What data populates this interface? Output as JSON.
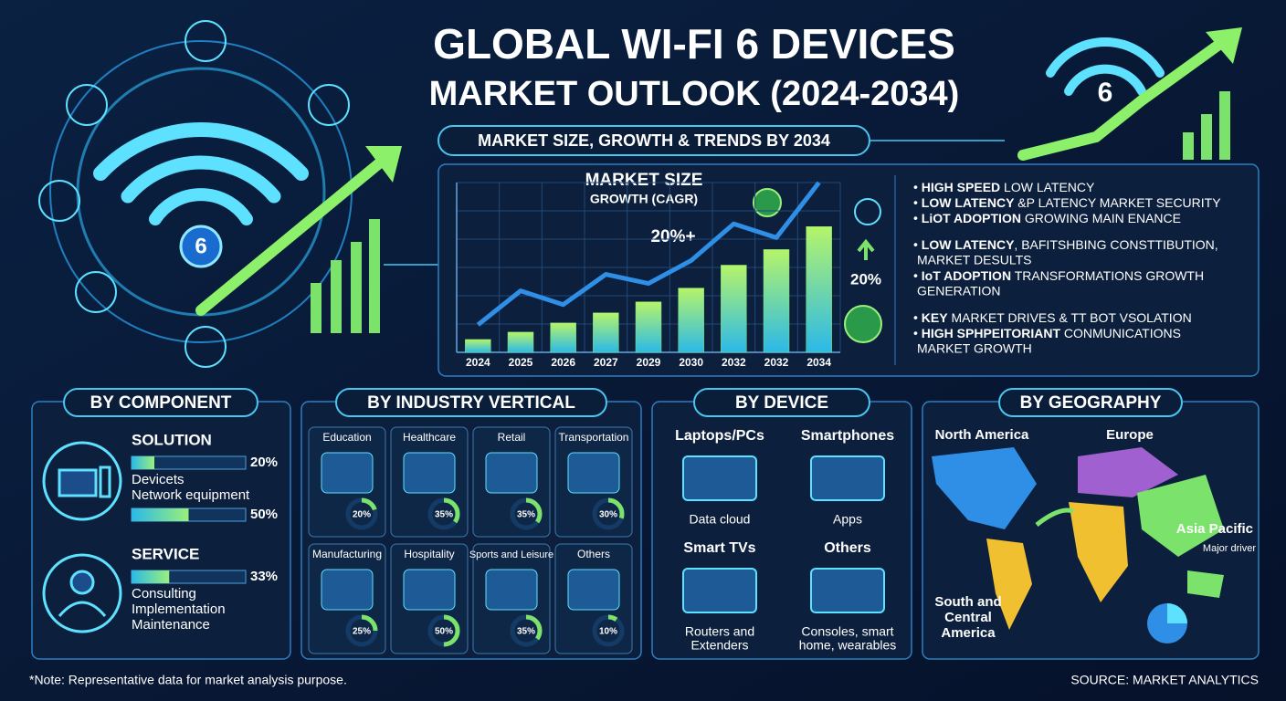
{
  "header": {
    "title_line1": "GLOBAL WI-FI 6 DEVICES",
    "title_line2": "MARKET OUTLOOK (2024-2034)",
    "subtitle": "MARKET SIZE, GROWTH & TRENDS BY 2034"
  },
  "chart_data": {
    "type": "bar-line",
    "title": "MARKET SIZE",
    "subtitle": "GROWTH (CAGR)",
    "annotation": "20%+",
    "side_annotation": "20%",
    "categories": [
      "2024",
      "2025",
      "2026",
      "2027",
      "2029",
      "2030",
      "2032",
      "2032",
      "2034"
    ],
    "bar_values": [
      14,
      22,
      32,
      43,
      55,
      70,
      95,
      112,
      137
    ],
    "line_values": [
      30,
      67,
      52,
      85,
      75,
      100,
      140,
      125,
      185
    ],
    "bar_color": "#7fe870",
    "line_color": "#2f8fe6",
    "grid": true
  },
  "highlights": [
    [
      {
        "bold": "HIGH SPEED",
        "text": " LOW LATENCY"
      },
      {
        "bold": "LOW LATENCY",
        "text": " &P LATENCY MARKET SECURITY"
      },
      {
        "bold": "LiOT ADOPTION",
        "text": " GROWING MAIN ENANCE"
      }
    ],
    [
      {
        "bold": "LOW LATENCY",
        "text": ", BAFITSHBING CONSTTIBUTION,",
        "more": "MARKET DESULTS"
      },
      {
        "bold": "IoT ADOPTION",
        "text": " TRANSFORMATIONS GROWTH",
        "more": "GENERATION"
      }
    ],
    [
      {
        "bold": "KEY",
        "text": " MARKET DRIVES & TT BOT VSOLATION"
      },
      {
        "bold": "HIGH SPHPEITORIANT",
        "text": " CONMUNICATIONS",
        "more": "MARKET GROWTH"
      }
    ]
  ],
  "component": {
    "title": "BY COMPONENT",
    "items": [
      {
        "name": "SOLUTION",
        "bars": [
          20,
          50
        ],
        "bar_labels": [
          "20%",
          "50%"
        ],
        "lines": [
          "Devicets",
          "Network equipment"
        ]
      },
      {
        "name": "SERVICE",
        "bars": [
          33
        ],
        "bar_labels": [
          "33%"
        ],
        "lines": [
          "Consulting",
          "Implementation",
          "Maintenance"
        ]
      }
    ]
  },
  "industry": {
    "title": "BY INDUSTRY VERTICAL",
    "cells": [
      {
        "name": "Education",
        "value": 20,
        "label": "20%"
      },
      {
        "name": "Healthcare",
        "value": 35,
        "label": "35%"
      },
      {
        "name": "Retail",
        "value": 35,
        "label": "35%"
      },
      {
        "name": "Transportation",
        "value": 30,
        "label": "30%"
      },
      {
        "name": "Manufacturing",
        "value": 25,
        "label": "25%"
      },
      {
        "name": "Hospitality",
        "value": 50,
        "label": "50%"
      },
      {
        "name": "Sports and Leisure",
        "value": 35,
        "label": "35%"
      },
      {
        "name": "Others",
        "value": 10,
        "label": "10%"
      }
    ]
  },
  "device": {
    "title": "BY DEVICE",
    "cells": [
      {
        "name": "Laptops/PCs",
        "lines": [
          "Data cloud"
        ]
      },
      {
        "name": "Smartphones",
        "lines": [
          "Apps"
        ]
      },
      {
        "name": "Smart TVs",
        "lines": [
          "Routers and",
          "Extenders"
        ]
      },
      {
        "name": "Others",
        "lines": [
          "Consoles, smart",
          "home, wearables"
        ]
      }
    ]
  },
  "geography": {
    "title": "BY GEOGRAPHY",
    "north_america": "North America",
    "europe": "Europe",
    "asia_pacific": "Asia Pacific",
    "asia_note": "Major driver",
    "south_america": [
      "South and",
      "Central",
      "America"
    ]
  },
  "footer": {
    "note": "*Note: Representative data for market analysis purpose.",
    "source": "SOURCE: MARKET ANALYTICS"
  }
}
